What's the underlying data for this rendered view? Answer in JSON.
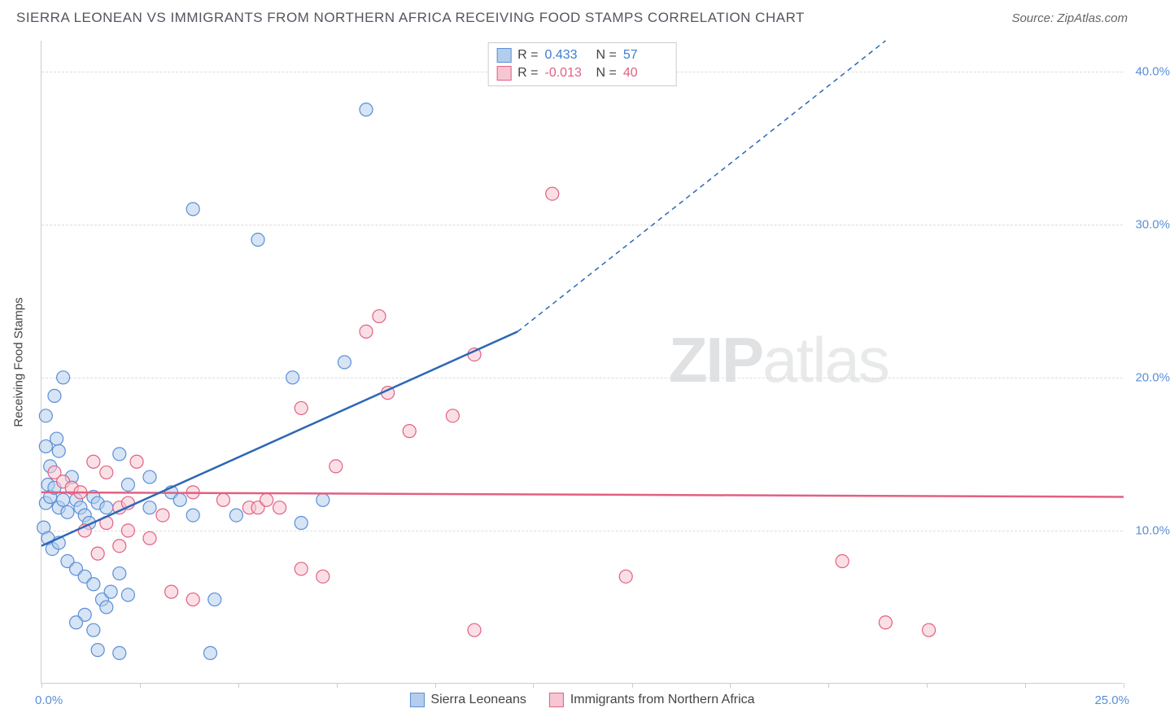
{
  "header": {
    "title": "SIERRA LEONEAN VS IMMIGRANTS FROM NORTHERN AFRICA RECEIVING FOOD STAMPS CORRELATION CHART",
    "source": "Source: ZipAtlas.com"
  },
  "chart": {
    "type": "scatter",
    "ylabel": "Receiving Food Stamps",
    "xlim": [
      0,
      25
    ],
    "ylim": [
      0,
      42
    ],
    "y_ticks": [
      10,
      20,
      30,
      40
    ],
    "y_tick_labels": [
      "10.0%",
      "20.0%",
      "30.0%",
      "40.0%"
    ],
    "x_ticks": [
      0,
      2.27,
      4.55,
      6.82,
      9.09,
      11.36,
      13.64,
      15.9,
      18.18,
      20.45,
      22.73,
      25
    ],
    "x_tick_labels": {
      "first": "0.0%",
      "last": "25.0%"
    },
    "grid_color": "#ddd",
    "background_color": "#ffffff",
    "marker_radius": 8,
    "watermark": "ZIPatlas",
    "stats": [
      {
        "series": "blue",
        "R": "0.433",
        "N": "57"
      },
      {
        "series": "pink",
        "R": "-0.013",
        "N": "40"
      }
    ],
    "legend": [
      {
        "color": "blue",
        "label": "Sierra Leoneans"
      },
      {
        "color": "pink",
        "label": "Immigrants from Northern Africa"
      }
    ],
    "series_blue": {
      "color_fill": "#b5cdec",
      "color_stroke": "#5a8fd6",
      "points": [
        [
          0.1,
          15.5
        ],
        [
          0.2,
          14.2
        ],
        [
          0.15,
          13.0
        ],
        [
          0.3,
          18.8
        ],
        [
          0.1,
          17.5
        ],
        [
          0.4,
          15.2
        ],
        [
          0.35,
          16.0
        ],
        [
          0.1,
          11.8
        ],
        [
          0.2,
          12.2
        ],
        [
          0.3,
          12.8
        ],
        [
          0.4,
          11.5
        ],
        [
          0.5,
          12.0
        ],
        [
          0.6,
          11.2
        ],
        [
          0.7,
          13.5
        ],
        [
          0.8,
          12.0
        ],
        [
          0.9,
          11.5
        ],
        [
          1.0,
          11.0
        ],
        [
          1.1,
          10.5
        ],
        [
          1.2,
          12.2
        ],
        [
          1.3,
          11.8
        ],
        [
          1.5,
          11.5
        ],
        [
          0.05,
          10.2
        ],
        [
          0.15,
          9.5
        ],
        [
          0.25,
          8.8
        ],
        [
          0.4,
          9.2
        ],
        [
          0.6,
          8.0
        ],
        [
          0.8,
          7.5
        ],
        [
          1.0,
          7.0
        ],
        [
          1.2,
          6.5
        ],
        [
          1.4,
          5.5
        ],
        [
          1.6,
          6.0
        ],
        [
          1.8,
          7.2
        ],
        [
          2.0,
          5.8
        ],
        [
          1.5,
          5.0
        ],
        [
          1.0,
          4.5
        ],
        [
          0.8,
          4.0
        ],
        [
          1.2,
          3.5
        ],
        [
          1.8,
          2.0
        ],
        [
          1.3,
          2.2
        ],
        [
          3.9,
          2.0
        ],
        [
          0.5,
          20.0
        ],
        [
          2.0,
          13.0
        ],
        [
          2.5,
          11.5
        ],
        [
          3.0,
          12.5
        ],
        [
          3.5,
          11.0
        ],
        [
          4.5,
          11.0
        ],
        [
          5.0,
          29.0
        ],
        [
          3.5,
          31.0
        ],
        [
          7.5,
          37.5
        ],
        [
          2.5,
          13.5
        ],
        [
          1.8,
          15.0
        ],
        [
          3.2,
          12.0
        ],
        [
          6.0,
          10.5
        ],
        [
          4.0,
          5.5
        ],
        [
          5.8,
          20.0
        ],
        [
          6.5,
          12.0
        ],
        [
          7.0,
          21.0
        ]
      ],
      "regression": {
        "x1": 0,
        "y1": 9.0,
        "x2": 11.0,
        "y2": 23.0,
        "dash_to_x": 19.5,
        "dash_to_y": 42.0
      }
    },
    "series_pink": {
      "color_fill": "#f6c6d2",
      "color_stroke": "#e26081",
      "points": [
        [
          0.3,
          13.8
        ],
        [
          0.5,
          13.2
        ],
        [
          0.7,
          12.8
        ],
        [
          0.9,
          12.5
        ],
        [
          1.2,
          14.5
        ],
        [
          1.5,
          13.8
        ],
        [
          1.8,
          11.5
        ],
        [
          2.0,
          11.8
        ],
        [
          2.2,
          14.5
        ],
        [
          2.8,
          11.0
        ],
        [
          1.5,
          10.5
        ],
        [
          2.0,
          10.0
        ],
        [
          2.5,
          9.5
        ],
        [
          1.0,
          10.0
        ],
        [
          1.3,
          8.5
        ],
        [
          1.8,
          9.0
        ],
        [
          3.0,
          6.0
        ],
        [
          3.5,
          5.5
        ],
        [
          3.5,
          12.5
        ],
        [
          4.2,
          12.0
        ],
        [
          4.8,
          11.5
        ],
        [
          5.0,
          11.5
        ],
        [
          5.2,
          12.0
        ],
        [
          5.5,
          11.5
        ],
        [
          6.0,
          7.5
        ],
        [
          6.5,
          7.0
        ],
        [
          6.8,
          14.2
        ],
        [
          6.0,
          18.0
        ],
        [
          7.5,
          23.0
        ],
        [
          7.8,
          24.0
        ],
        [
          8.5,
          16.5
        ],
        [
          9.5,
          17.5
        ],
        [
          8.0,
          19.0
        ],
        [
          10.0,
          21.5
        ],
        [
          10.0,
          3.5
        ],
        [
          11.8,
          32.0
        ],
        [
          13.5,
          7.0
        ],
        [
          18.5,
          8.0
        ],
        [
          20.5,
          3.5
        ],
        [
          19.5,
          4.0
        ]
      ],
      "regression": {
        "x1": 0,
        "y1": 12.5,
        "x2": 25,
        "y2": 12.2
      }
    }
  }
}
